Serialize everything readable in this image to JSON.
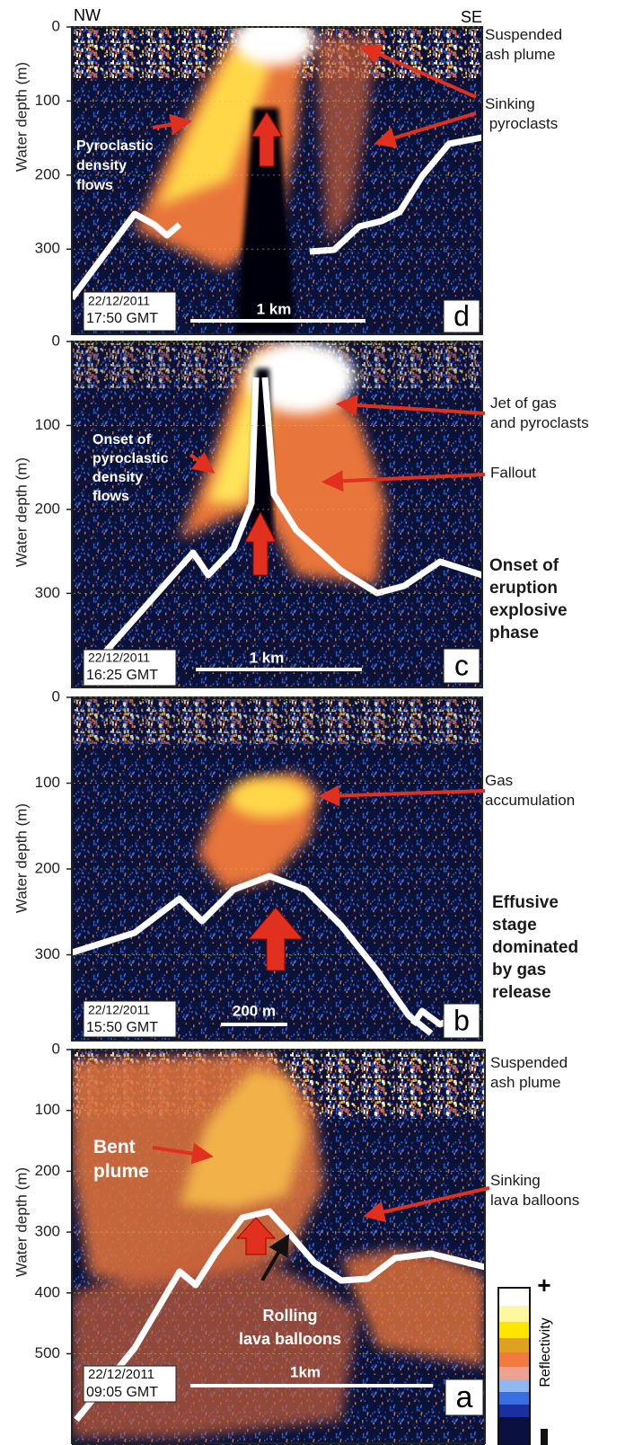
{
  "compass": {
    "left": "NW",
    "right": "SE"
  },
  "y_axis_title": "Water depth (m)",
  "panels": [
    {
      "letter": "d",
      "date": "22/12/2011",
      "time": "17:50 GMT",
      "scale_bar": "1 km",
      "ylim": [
        0,
        415
      ],
      "yticks": [
        0,
        100,
        200,
        300
      ],
      "labels": [
        [
          "Suspended",
          "ash plume"
        ],
        [
          "Sinking",
          " pyroclasts"
        ],
        [
          "Pyroclastic",
          "density",
          "flows"
        ]
      ]
    },
    {
      "letter": "c",
      "date": "22/12/2011",
      "time": "16:25 GMT",
      "scale_bar": "1 km",
      "ylim": [
        0,
        412
      ],
      "yticks": [
        0,
        100,
        200,
        300
      ],
      "labels": [
        [
          "Jet of gas",
          "and pyroclasts"
        ],
        [
          "Fallout"
        ],
        [
          "Onset of",
          "pyroclastic",
          "density",
          "flows"
        ]
      ],
      "stage": [
        "Onset of",
        "eruption",
        "explosive",
        "phase"
      ]
    },
    {
      "letter": "b",
      "date": "22/12/2011",
      "time": "15:50 GMT",
      "scale_bar": "200 m",
      "ylim": [
        0,
        400
      ],
      "yticks": [
        0,
        100,
        200,
        300
      ],
      "labels": [
        [
          "Gas",
          "accumulation"
        ]
      ],
      "stage": [
        "Effusive",
        "stage",
        "dominated",
        "by gas",
        "release"
      ]
    },
    {
      "letter": "a",
      "date": "22/12/2011",
      "time": "09:05 GMT",
      "scale_bar": "1km",
      "ylim": [
        0,
        650
      ],
      "yticks": [
        0,
        100,
        200,
        300,
        400,
        500
      ],
      "labels": [
        [
          "Suspended",
          "ash plume"
        ],
        [
          "Sinking",
          "lava balloons"
        ],
        [
          "Bent",
          "plume"
        ],
        [
          "Rolling",
          "lava balloons"
        ]
      ]
    }
  ],
  "colorbar": {
    "label": "Reflectivity",
    "max": "+"
  }
}
